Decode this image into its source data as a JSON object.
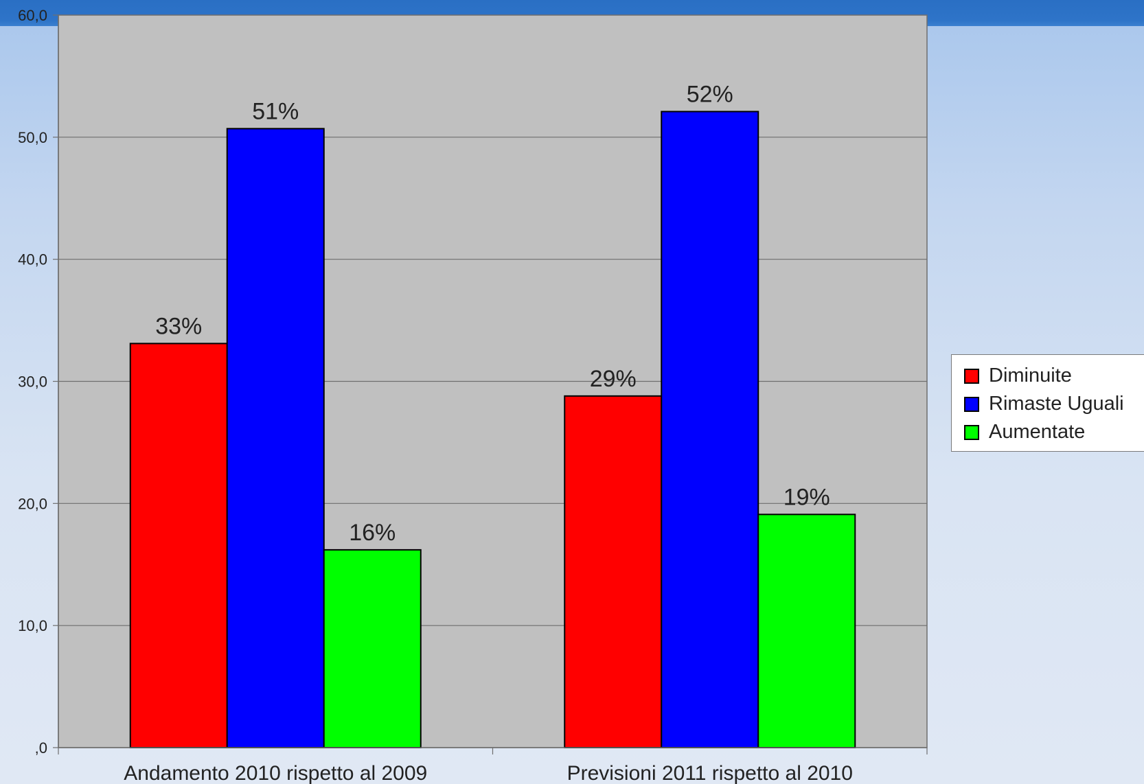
{
  "chart_data": {
    "type": "bar",
    "title": "",
    "xlabel": "",
    "ylabel": "",
    "ylim": [
      0,
      60
    ],
    "yticks": [
      0,
      10,
      20,
      30,
      40,
      50,
      60
    ],
    "ytick_labels": [
      ",0",
      "10,0",
      "20,0",
      "30,0",
      "40,0",
      "50,0",
      "60,0"
    ],
    "categories": [
      "Andamento 2010 rispetto al 2009",
      "Previsioni 2011 rispetto al 2010"
    ],
    "series": [
      {
        "name": "Diminuite",
        "color": "#ff0000",
        "values": [
          33.1,
          28.8
        ],
        "labels": [
          "33%",
          "29%"
        ]
      },
      {
        "name": "Rimaste Uguali",
        "color": "#0000ff",
        "values": [
          50.7,
          52.1
        ],
        "labels": [
          "51%",
          "52%"
        ]
      },
      {
        "name": "Aumentate",
        "color": "#00ff00",
        "values": [
          16.2,
          19.1
        ],
        "labels": [
          "16%",
          "19%"
        ]
      }
    ],
    "grid": true,
    "legend_position": "right",
    "plot_background": "#c0c0c0"
  }
}
